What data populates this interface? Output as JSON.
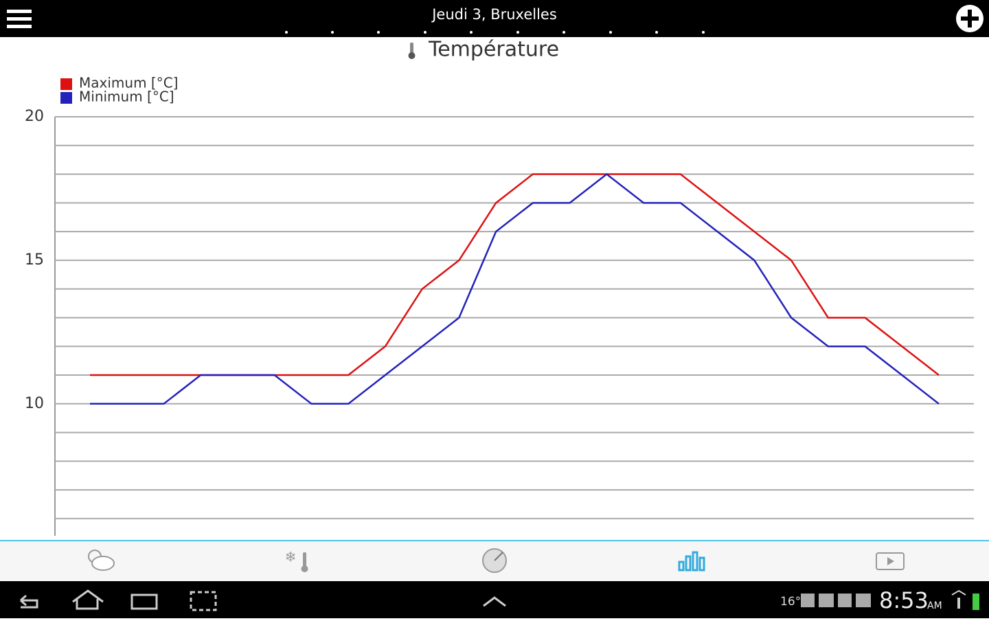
{
  "app_bar": {
    "title": "Jeudi 3, Bruxelles"
  },
  "status_bar": {
    "temperature": "16°",
    "time": "8:53",
    "am_pm": "AM"
  },
  "chart_data": {
    "type": "line",
    "title": "Température",
    "categories": [
      null,
      null,
      null,
      null,
      null,
      null,
      null,
      null,
      null,
      null,
      null,
      null,
      null,
      null,
      null,
      null,
      null,
      null,
      null,
      null,
      null,
      null,
      null,
      null
    ],
    "series": [
      {
        "name": "Maximum [°C]",
        "color": "#dd1111",
        "values": [
          11,
          11,
          11,
          11,
          11,
          11,
          11,
          11,
          12,
          14,
          15,
          17,
          18,
          18,
          18,
          18,
          18,
          17,
          16,
          15,
          13,
          13,
          12,
          11
        ]
      },
      {
        "name": "Minimum [°C]",
        "color": "#2222bb",
        "values": [
          10,
          10,
          10,
          11,
          11,
          11,
          10,
          10,
          11,
          12,
          13,
          16,
          17,
          17,
          18,
          17,
          17,
          16,
          15,
          13,
          12,
          12,
          11,
          10
        ]
      }
    ],
    "ylim": [
      5.4,
      20
    ],
    "yticks": [
      10,
      15,
      20
    ],
    "y_minor_ticks": [
      6,
      7,
      8,
      9,
      11,
      12,
      13,
      14,
      16,
      17,
      18,
      19
    ],
    "grid": true,
    "legend": "top-left"
  }
}
